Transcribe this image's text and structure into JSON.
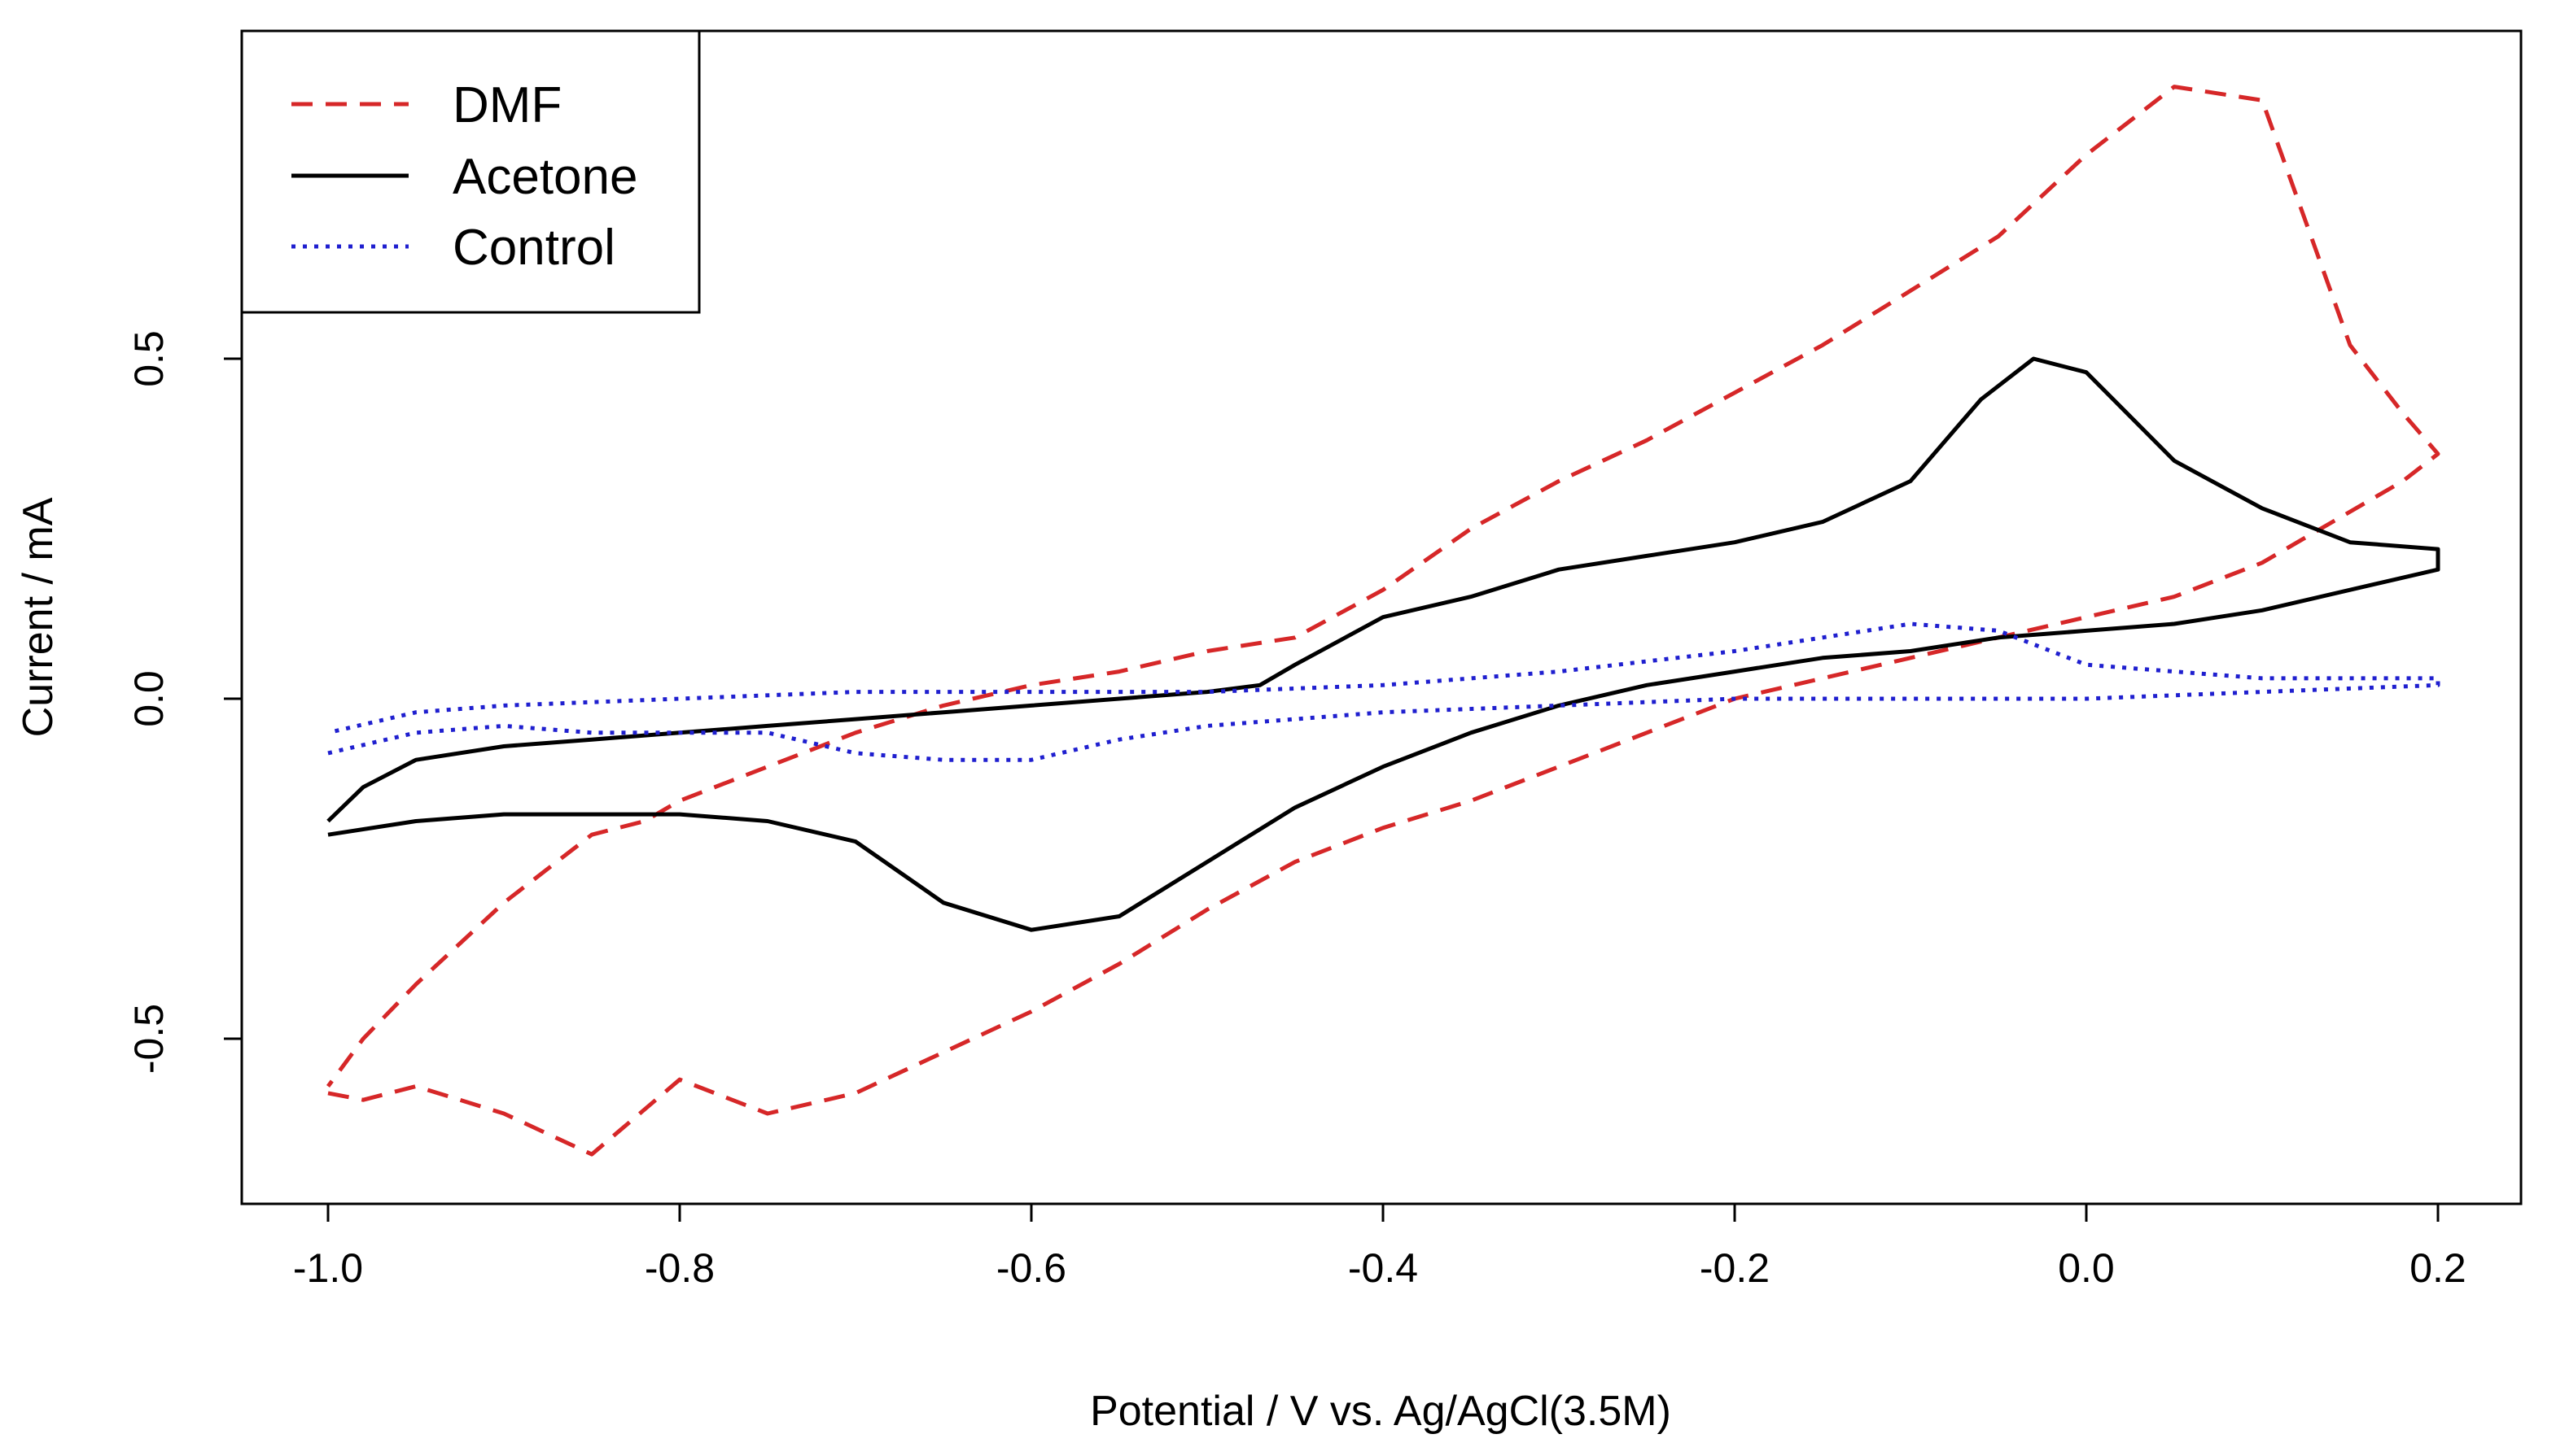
{
  "chart_data": {
    "type": "line",
    "title": "",
    "xlabel": "Potential / V vs. Ag/AgCl(3.5M)",
    "ylabel": "Current / mA",
    "xlim": [
      -1.05,
      0.2
    ],
    "ylim": [
      -0.75,
      0.98
    ],
    "x_ticks": [
      -1.0,
      -0.8,
      -0.6,
      -0.4,
      -0.2,
      0.0,
      0.2
    ],
    "x_tick_labels": [
      "-1.0",
      "-0.8",
      "-0.6",
      "-0.4",
      "-0.2",
      "0.0",
      "0.2"
    ],
    "y_ticks": [
      -0.5,
      0.0,
      0.5
    ],
    "y_tick_labels": [
      "-0.5",
      "0.0",
      "0.5"
    ],
    "grid": false,
    "legend_position": "top-left",
    "series": [
      {
        "name": "DMF",
        "color": "#d62728",
        "dash": "dashed",
        "x": [
          -1.0,
          -0.98,
          -0.95,
          -0.9,
          -0.85,
          -0.8,
          -0.75,
          -0.7,
          -0.65,
          -0.6,
          -0.55,
          -0.5,
          -0.45,
          -0.4,
          -0.35,
          -0.3,
          -0.25,
          -0.2,
          -0.15,
          -0.1,
          -0.05,
          0.0,
          0.05,
          0.08,
          0.1,
          0.12,
          0.14,
          0.16,
          0.18,
          0.2,
          0.18,
          0.15,
          0.1,
          0.05,
          0.0,
          -0.05,
          -0.1,
          -0.15,
          -0.2,
          -0.25,
          -0.3,
          -0.35,
          -0.4,
          -0.45,
          -0.5,
          -0.55,
          -0.6,
          -0.65,
          -0.7,
          -0.75,
          -0.8,
          -0.82,
          -0.85,
          -0.9,
          -0.95,
          -0.98,
          -1.0
        ],
        "values": [
          -0.58,
          -0.59,
          -0.57,
          -0.61,
          -0.67,
          -0.56,
          -0.61,
          -0.58,
          -0.52,
          -0.46,
          -0.39,
          -0.31,
          -0.24,
          -0.19,
          -0.15,
          -0.1,
          -0.05,
          0.0,
          0.03,
          0.06,
          0.09,
          0.12,
          0.15,
          0.18,
          0.2,
          0.23,
          0.26,
          0.29,
          0.32,
          0.36,
          0.42,
          0.52,
          0.88,
          0.9,
          0.8,
          0.68,
          0.6,
          0.52,
          0.45,
          0.38,
          0.32,
          0.25,
          0.16,
          0.09,
          0.07,
          0.04,
          0.02,
          -0.01,
          -0.05,
          -0.1,
          -0.15,
          -0.18,
          -0.2,
          -0.3,
          -0.42,
          -0.5,
          -0.57
        ]
      },
      {
        "name": "Acetone",
        "color": "#000000",
        "dash": "solid",
        "x": [
          -1.0,
          -0.95,
          -0.9,
          -0.85,
          -0.8,
          -0.75,
          -0.7,
          -0.65,
          -0.6,
          -0.55,
          -0.5,
          -0.45,
          -0.4,
          -0.35,
          -0.3,
          -0.25,
          -0.2,
          -0.15,
          -0.1,
          -0.05,
          0.0,
          0.05,
          0.1,
          0.15,
          0.2,
          0.2,
          0.15,
          0.1,
          0.05,
          0.0,
          -0.03,
          -0.06,
          -0.1,
          -0.15,
          -0.2,
          -0.25,
          -0.3,
          -0.35,
          -0.4,
          -0.45,
          -0.47,
          -0.5,
          -0.55,
          -0.6,
          -0.65,
          -0.7,
          -0.75,
          -0.8,
          -0.85,
          -0.9,
          -0.95,
          -0.98,
          -1.0
        ],
        "values": [
          -0.2,
          -0.18,
          -0.17,
          -0.17,
          -0.17,
          -0.18,
          -0.21,
          -0.3,
          -0.34,
          -0.32,
          -0.24,
          -0.16,
          -0.1,
          -0.05,
          -0.01,
          0.02,
          0.04,
          0.06,
          0.07,
          0.09,
          0.1,
          0.11,
          0.13,
          0.16,
          0.19,
          0.22,
          0.23,
          0.28,
          0.35,
          0.48,
          0.5,
          0.44,
          0.32,
          0.26,
          0.23,
          0.21,
          0.19,
          0.15,
          0.12,
          0.05,
          0.02,
          0.01,
          0.0,
          -0.01,
          -0.02,
          -0.03,
          -0.04,
          -0.05,
          -0.06,
          -0.07,
          -0.09,
          -0.13,
          -0.18
        ]
      },
      {
        "name": "Control",
        "color": "#1f1fcf",
        "dash": "dotted",
        "x": [
          -1.0,
          -0.95,
          -0.9,
          -0.85,
          -0.8,
          -0.75,
          -0.7,
          -0.65,
          -0.6,
          -0.55,
          -0.5,
          -0.45,
          -0.4,
          -0.3,
          -0.2,
          -0.1,
          0.0,
          0.1,
          0.2,
          0.2,
          0.1,
          0.05,
          0.0,
          -0.05,
          -0.1,
          -0.15,
          -0.2,
          -0.3,
          -0.4,
          -0.5,
          -0.6,
          -0.7,
          -0.8,
          -0.9,
          -0.95,
          -1.0
        ],
        "values": [
          -0.08,
          -0.05,
          -0.04,
          -0.05,
          -0.05,
          -0.05,
          -0.08,
          -0.09,
          -0.09,
          -0.06,
          -0.04,
          -0.03,
          -0.02,
          -0.01,
          0.0,
          0.0,
          0.0,
          0.01,
          0.02,
          0.03,
          0.03,
          0.04,
          0.05,
          0.1,
          0.11,
          0.09,
          0.07,
          0.04,
          0.02,
          0.01,
          0.01,
          0.01,
          0.0,
          -0.01,
          -0.02,
          -0.05
        ]
      }
    ]
  }
}
